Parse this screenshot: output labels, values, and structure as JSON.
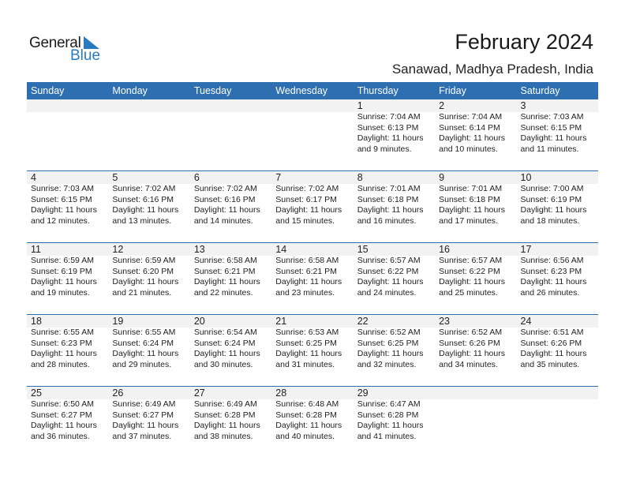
{
  "logo": {
    "text1": "General",
    "text2": "Blue"
  },
  "title": "February 2024",
  "location": "Sanawad, Madhya Pradesh, India",
  "colors": {
    "header": "#2e6fb2",
    "band": "#f2f2f2"
  },
  "weekdays": [
    "Sunday",
    "Monday",
    "Tuesday",
    "Wednesday",
    "Thursday",
    "Friday",
    "Saturday"
  ],
  "weeks": [
    [
      null,
      null,
      null,
      null,
      {
        "day": "1",
        "sunrise": "Sunrise: 7:04 AM",
        "sunset": "Sunset: 6:13 PM",
        "daylight": "Daylight: 11 hours",
        "minutes": "and 9 minutes."
      },
      {
        "day": "2",
        "sunrise": "Sunrise: 7:04 AM",
        "sunset": "Sunset: 6:14 PM",
        "daylight": "Daylight: 11 hours",
        "minutes": "and 10 minutes."
      },
      {
        "day": "3",
        "sunrise": "Sunrise: 7:03 AM",
        "sunset": "Sunset: 6:15 PM",
        "daylight": "Daylight: 11 hours",
        "minutes": "and 11 minutes."
      }
    ],
    [
      {
        "day": "4",
        "sunrise": "Sunrise: 7:03 AM",
        "sunset": "Sunset: 6:15 PM",
        "daylight": "Daylight: 11 hours",
        "minutes": "and 12 minutes."
      },
      {
        "day": "5",
        "sunrise": "Sunrise: 7:02 AM",
        "sunset": "Sunset: 6:16 PM",
        "daylight": "Daylight: 11 hours",
        "minutes": "and 13 minutes."
      },
      {
        "day": "6",
        "sunrise": "Sunrise: 7:02 AM",
        "sunset": "Sunset: 6:16 PM",
        "daylight": "Daylight: 11 hours",
        "minutes": "and 14 minutes."
      },
      {
        "day": "7",
        "sunrise": "Sunrise: 7:02 AM",
        "sunset": "Sunset: 6:17 PM",
        "daylight": "Daylight: 11 hours",
        "minutes": "and 15 minutes."
      },
      {
        "day": "8",
        "sunrise": "Sunrise: 7:01 AM",
        "sunset": "Sunset: 6:18 PM",
        "daylight": "Daylight: 11 hours",
        "minutes": "and 16 minutes."
      },
      {
        "day": "9",
        "sunrise": "Sunrise: 7:01 AM",
        "sunset": "Sunset: 6:18 PM",
        "daylight": "Daylight: 11 hours",
        "minutes": "and 17 minutes."
      },
      {
        "day": "10",
        "sunrise": "Sunrise: 7:00 AM",
        "sunset": "Sunset: 6:19 PM",
        "daylight": "Daylight: 11 hours",
        "minutes": "and 18 minutes."
      }
    ],
    [
      {
        "day": "11",
        "sunrise": "Sunrise: 6:59 AM",
        "sunset": "Sunset: 6:19 PM",
        "daylight": "Daylight: 11 hours",
        "minutes": "and 19 minutes."
      },
      {
        "day": "12",
        "sunrise": "Sunrise: 6:59 AM",
        "sunset": "Sunset: 6:20 PM",
        "daylight": "Daylight: 11 hours",
        "minutes": "and 21 minutes."
      },
      {
        "day": "13",
        "sunrise": "Sunrise: 6:58 AM",
        "sunset": "Sunset: 6:21 PM",
        "daylight": "Daylight: 11 hours",
        "minutes": "and 22 minutes."
      },
      {
        "day": "14",
        "sunrise": "Sunrise: 6:58 AM",
        "sunset": "Sunset: 6:21 PM",
        "daylight": "Daylight: 11 hours",
        "minutes": "and 23 minutes."
      },
      {
        "day": "15",
        "sunrise": "Sunrise: 6:57 AM",
        "sunset": "Sunset: 6:22 PM",
        "daylight": "Daylight: 11 hours",
        "minutes": "and 24 minutes."
      },
      {
        "day": "16",
        "sunrise": "Sunrise: 6:57 AM",
        "sunset": "Sunset: 6:22 PM",
        "daylight": "Daylight: 11 hours",
        "minutes": "and 25 minutes."
      },
      {
        "day": "17",
        "sunrise": "Sunrise: 6:56 AM",
        "sunset": "Sunset: 6:23 PM",
        "daylight": "Daylight: 11 hours",
        "minutes": "and 26 minutes."
      }
    ],
    [
      {
        "day": "18",
        "sunrise": "Sunrise: 6:55 AM",
        "sunset": "Sunset: 6:23 PM",
        "daylight": "Daylight: 11 hours",
        "minutes": "and 28 minutes."
      },
      {
        "day": "19",
        "sunrise": "Sunrise: 6:55 AM",
        "sunset": "Sunset: 6:24 PM",
        "daylight": "Daylight: 11 hours",
        "minutes": "and 29 minutes."
      },
      {
        "day": "20",
        "sunrise": "Sunrise: 6:54 AM",
        "sunset": "Sunset: 6:24 PM",
        "daylight": "Daylight: 11 hours",
        "minutes": "and 30 minutes."
      },
      {
        "day": "21",
        "sunrise": "Sunrise: 6:53 AM",
        "sunset": "Sunset: 6:25 PM",
        "daylight": "Daylight: 11 hours",
        "minutes": "and 31 minutes."
      },
      {
        "day": "22",
        "sunrise": "Sunrise: 6:52 AM",
        "sunset": "Sunset: 6:25 PM",
        "daylight": "Daylight: 11 hours",
        "minutes": "and 32 minutes."
      },
      {
        "day": "23",
        "sunrise": "Sunrise: 6:52 AM",
        "sunset": "Sunset: 6:26 PM",
        "daylight": "Daylight: 11 hours",
        "minutes": "and 34 minutes."
      },
      {
        "day": "24",
        "sunrise": "Sunrise: 6:51 AM",
        "sunset": "Sunset: 6:26 PM",
        "daylight": "Daylight: 11 hours",
        "minutes": "and 35 minutes."
      }
    ],
    [
      {
        "day": "25",
        "sunrise": "Sunrise: 6:50 AM",
        "sunset": "Sunset: 6:27 PM",
        "daylight": "Daylight: 11 hours",
        "minutes": "and 36 minutes."
      },
      {
        "day": "26",
        "sunrise": "Sunrise: 6:49 AM",
        "sunset": "Sunset: 6:27 PM",
        "daylight": "Daylight: 11 hours",
        "minutes": "and 37 minutes."
      },
      {
        "day": "27",
        "sunrise": "Sunrise: 6:49 AM",
        "sunset": "Sunset: 6:28 PM",
        "daylight": "Daylight: 11 hours",
        "minutes": "and 38 minutes."
      },
      {
        "day": "28",
        "sunrise": "Sunrise: 6:48 AM",
        "sunset": "Sunset: 6:28 PM",
        "daylight": "Daylight: 11 hours",
        "minutes": "and 40 minutes."
      },
      {
        "day": "29",
        "sunrise": "Sunrise: 6:47 AM",
        "sunset": "Sunset: 6:28 PM",
        "daylight": "Daylight: 11 hours",
        "minutes": "and 41 minutes."
      },
      null,
      null
    ]
  ]
}
